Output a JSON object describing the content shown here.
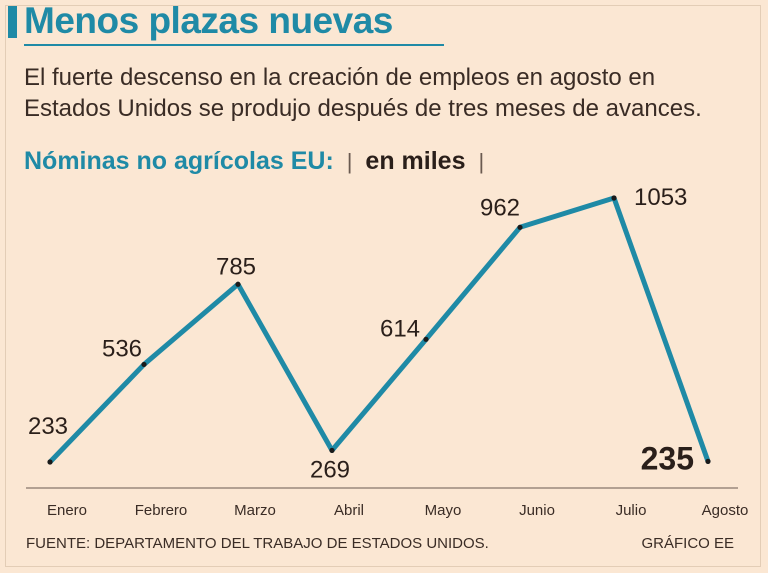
{
  "header": {
    "title": "Menos plazas nuevas",
    "subtitle": "El fuerte descenso en la creación de empleos en agosto en Estados Unidos se produjo después de tres meses de avances."
  },
  "chart_heading": {
    "main": "Nóminas no agrícolas EU:",
    "separator_left": "|",
    "unit": "en miles",
    "separator_right": "|"
  },
  "chart_data": {
    "type": "line",
    "title": "Nóminas no agrícolas EU",
    "ylabel": "en miles",
    "xlabel": "",
    "categories": [
      "Enero",
      "Febrero",
      "Marzo",
      "Abril",
      "Mayo",
      "Junio",
      "Julio",
      "Agosto"
    ],
    "values": [
      233,
      536,
      785,
      269,
      614,
      962,
      1053,
      235
    ],
    "value_labels": [
      "233",
      "536",
      "785",
      "269",
      "614",
      "962",
      "1053",
      "235"
    ],
    "highlight_index": 7,
    "ylim": [
      200,
      1100
    ],
    "grid": false,
    "line_color": "#1f8aa6"
  },
  "footer": {
    "source": "FUENTE: DEPARTAMENTO DEL TRABAJO DE ESTADOS UNIDOS.",
    "credit": "GRÁFICO EE"
  }
}
